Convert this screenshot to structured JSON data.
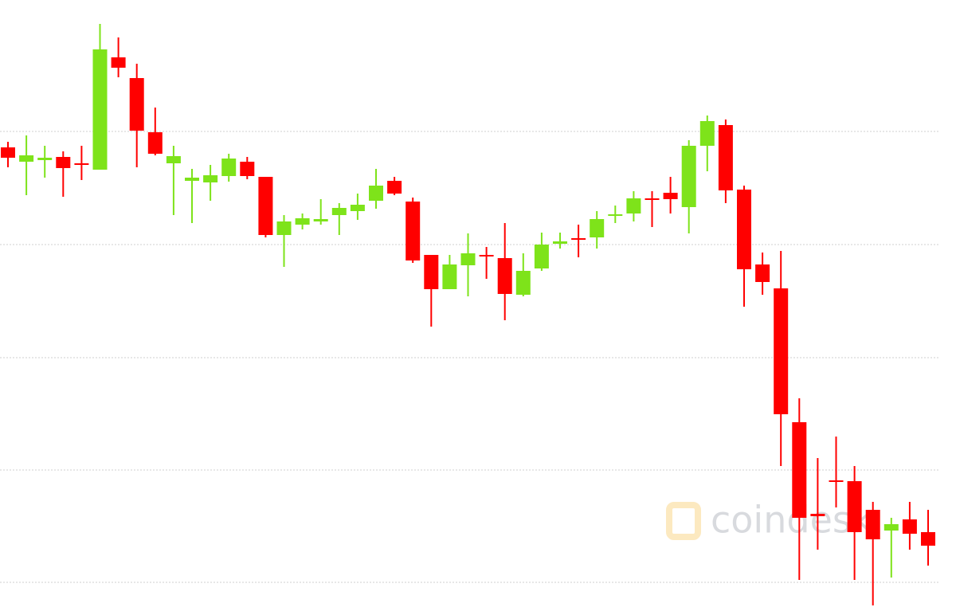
{
  "chart_data": {
    "type": "candlestick",
    "watermark": "coindesk",
    "up_color": "#7ee31a",
    "down_color": "#ff0000",
    "ylim": [
      0,
      767
    ],
    "yticks": [
      36,
      177,
      318,
      460,
      602
    ],
    "grid": true,
    "open": [
      582,
      564,
      566,
      570,
      562,
      554,
      695,
      669,
      601,
      562,
      540,
      538,
      546,
      564,
      545,
      472,
      485,
      489,
      497,
      502,
      515,
      540,
      514,
      447,
      404,
      434,
      447,
      443,
      397,
      430,
      461,
      468,
      469,
      496,
      499,
      518,
      525,
      507,
      584,
      610,
      529,
      435,
      405,
      237,
      122,
      164,
      163,
      127,
      101,
      115,
      99
    ],
    "high": [
      589,
      597,
      584,
      577,
      584,
      737,
      720,
      687,
      632,
      584,
      555,
      560,
      574,
      570,
      545,
      497,
      499,
      517,
      512,
      524,
      555,
      545,
      519,
      447,
      447,
      474,
      457,
      487,
      449,
      475,
      475,
      485,
      502,
      509,
      527,
      527,
      545,
      591,
      622,
      617,
      534,
      450,
      452,
      267,
      192,
      219,
      182,
      137,
      117,
      137,
      127
    ],
    "low": [
      557,
      522,
      544,
      520,
      541,
      554,
      670,
      557,
      572,
      497,
      487,
      515,
      539,
      542,
      469,
      432,
      479,
      485,
      472,
      491,
      505,
      522,
      437,
      357,
      404,
      395,
      417,
      365,
      395,
      427,
      455,
      444,
      455,
      487,
      489,
      482,
      499,
      474,
      552,
      512,
      382,
      397,
      182,
      39,
      77,
      130,
      39,
      7,
      42,
      77,
      57
    ],
    "close": [
      569,
      572,
      569,
      556,
      560,
      705,
      682,
      603,
      574,
      571,
      544,
      547,
      568,
      546,
      472,
      489,
      493,
      492,
      506,
      510,
      534,
      524,
      440,
      404,
      435,
      449,
      445,
      398,
      427,
      460,
      464,
      466,
      492,
      498,
      518,
      516,
      517,
      584,
      615,
      528,
      429,
      413,
      247,
      117,
      119,
      162,
      99,
      90,
      109,
      97,
      82
    ]
  }
}
